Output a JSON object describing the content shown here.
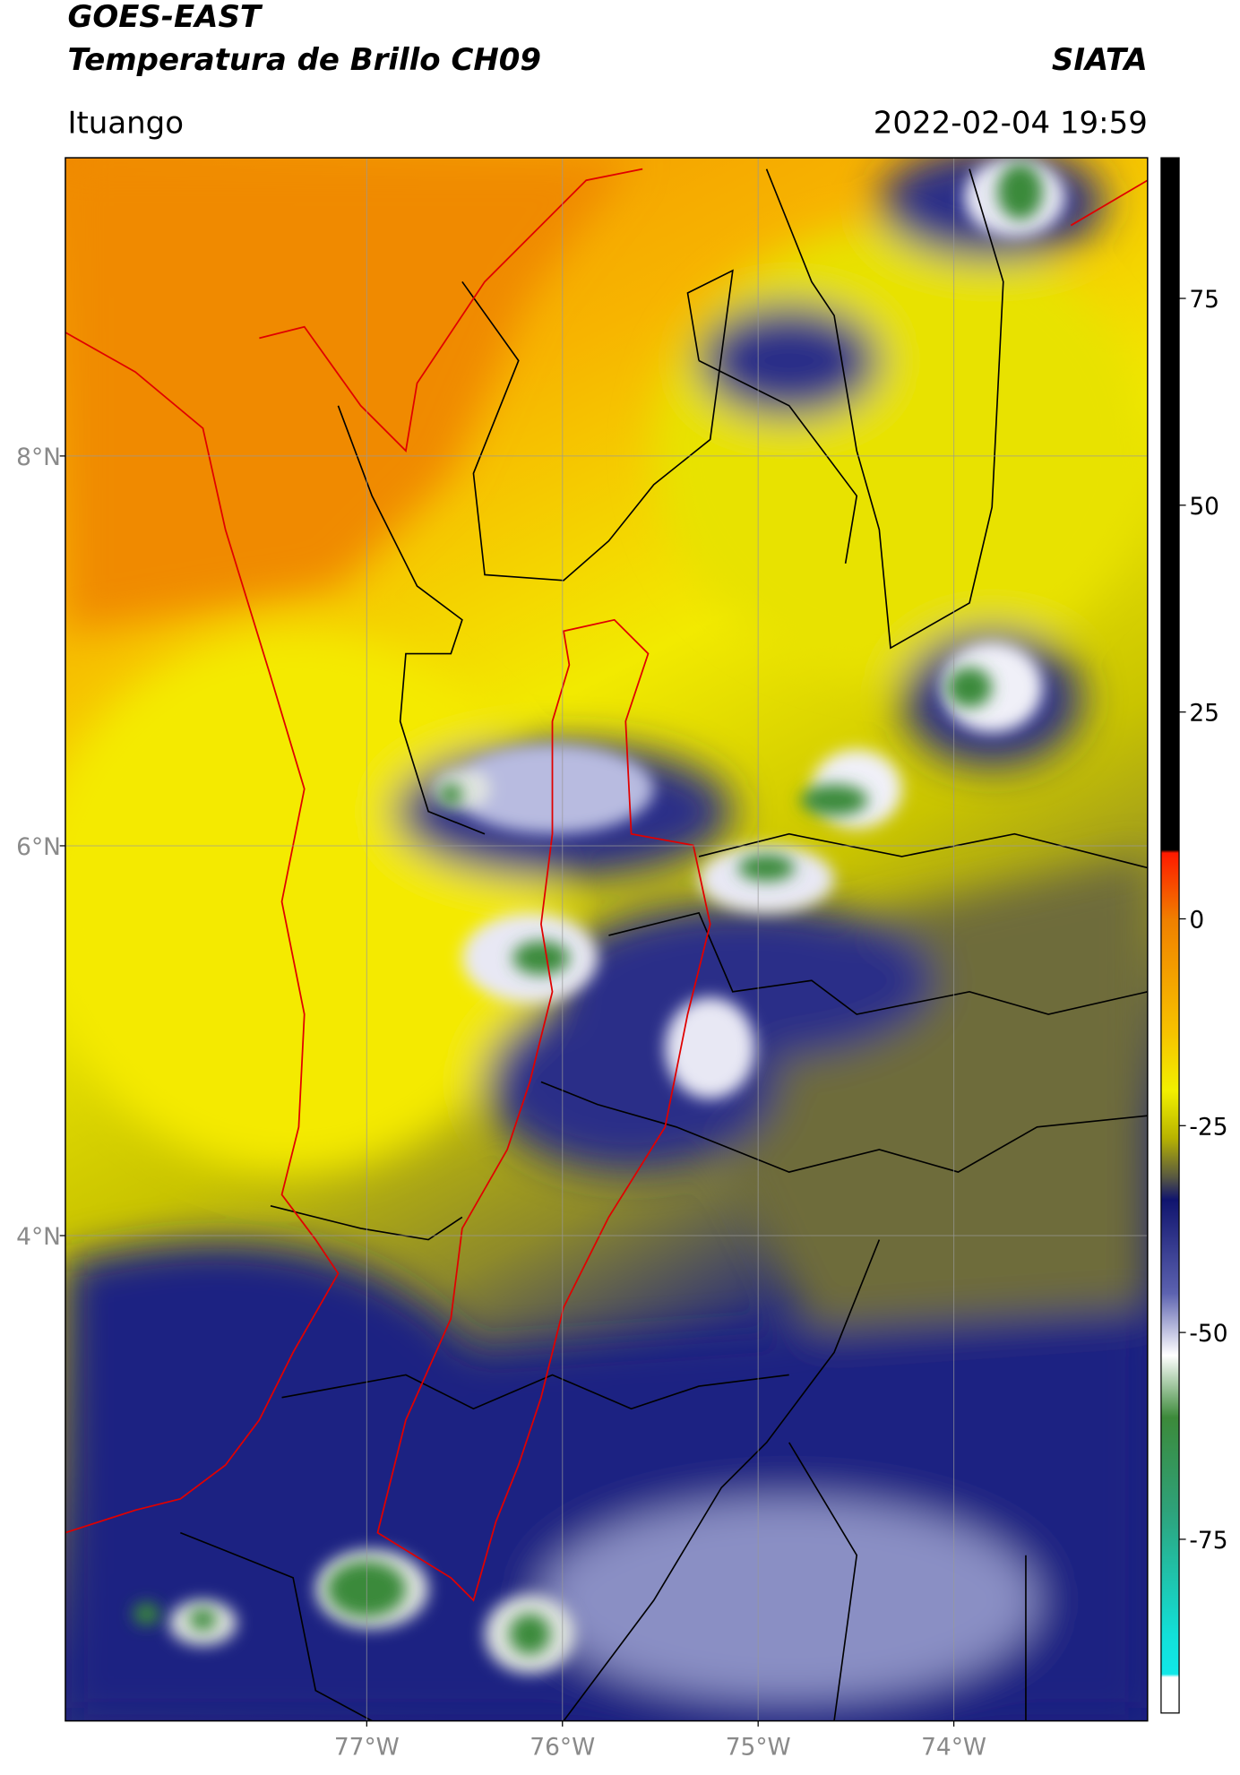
{
  "header": {
    "title": "GOES-EAST",
    "subtitle": "Temperatura de Brillo CH09",
    "agency": "SIATA",
    "location": "Ituango",
    "datetime": "2022-02-04 19:59"
  },
  "map": {
    "xlim": [
      -78.54,
      -73.01
    ],
    "ylim": [
      1.51,
      9.53
    ],
    "xticks": [
      {
        "value": -77,
        "label": "77°W"
      },
      {
        "value": -76,
        "label": "76°W"
      },
      {
        "value": -75,
        "label": "75°W"
      },
      {
        "value": -74,
        "label": "74°W"
      }
    ],
    "yticks": [
      {
        "value": 8,
        "label": "8°N"
      },
      {
        "value": 6,
        "label": "6°N"
      },
      {
        "value": 4,
        "label": "4°N"
      }
    ],
    "grid": true
  },
  "colorbar": {
    "lim": [
      -96,
      92
    ],
    "ticks": [
      75,
      50,
      25,
      0,
      -25,
      -50,
      -75
    ]
  }
}
